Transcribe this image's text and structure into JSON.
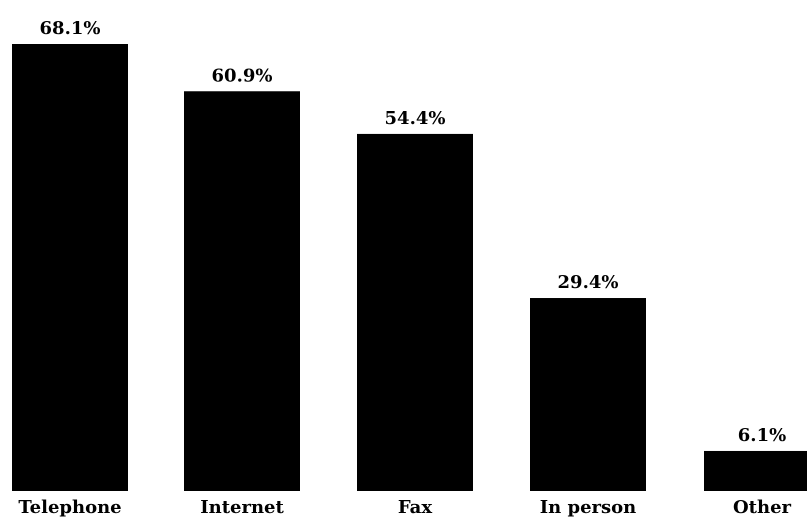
{
  "chart_data": {
    "type": "bar",
    "categories": [
      "Telephone",
      "Internet",
      "Fax",
      "In person",
      "Other"
    ],
    "values": [
      68.1,
      60.9,
      54.4,
      29.4,
      6.1
    ],
    "value_labels": [
      "68.1%",
      "60.9%",
      "54.4%",
      "29.4%",
      "6.1%"
    ],
    "title": "",
    "xlabel": "",
    "ylabel": "",
    "ylim": [
      0,
      70
    ],
    "grid": false,
    "bar_color": "#000000"
  }
}
